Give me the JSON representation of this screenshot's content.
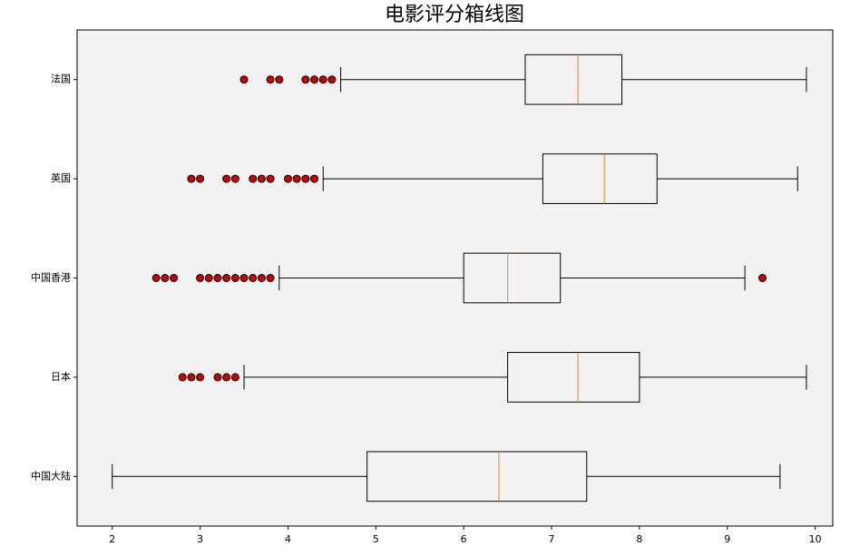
{
  "chart_data": {
    "type": "boxplot",
    "title": "电影评分箱线图",
    "orientation": "horizontal",
    "categories": [
      "中国大陆",
      "日本",
      "中国香港",
      "英国",
      "法国"
    ],
    "boxes": [
      {
        "whislo": 2.0,
        "q1": 4.9,
        "med": 6.4,
        "q3": 7.4,
        "whishi": 9.6,
        "fliers": []
      },
      {
        "whislo": 3.5,
        "q1": 6.5,
        "med": 7.3,
        "q3": 8.0,
        "whishi": 9.9,
        "fliers": [
          2.8,
          2.9,
          3.0,
          3.2,
          3.3,
          3.4
        ]
      },
      {
        "whislo": 3.9,
        "q1": 6.0,
        "med": 6.5,
        "q3": 7.1,
        "whishi": 9.2,
        "fliers": [
          2.5,
          2.6,
          2.7,
          3.0,
          3.1,
          3.2,
          3.3,
          3.4,
          3.5,
          3.6,
          3.7,
          3.8,
          9.4
        ]
      },
      {
        "whislo": 4.4,
        "q1": 6.9,
        "med": 7.6,
        "q3": 8.2,
        "whishi": 9.8,
        "fliers": [
          2.9,
          3.0,
          3.3,
          3.4,
          3.6,
          3.7,
          3.8,
          4.0,
          4.1,
          4.2,
          4.3
        ]
      },
      {
        "whislo": 4.6,
        "q1": 6.7,
        "med": 7.3,
        "q3": 7.8,
        "whishi": 9.9,
        "fliers": [
          3.5,
          3.8,
          3.9,
          4.2,
          4.3,
          4.4,
          4.5
        ]
      }
    ],
    "box_color": "#000000",
    "median_color": "#ff7f0e",
    "flier_color": "#cc0000",
    "background": "#f2f2f2",
    "xlim": [
      1.6,
      10.2
    ],
    "xticks": [
      2,
      3,
      4,
      5,
      6,
      7,
      8,
      9,
      10
    ]
  }
}
